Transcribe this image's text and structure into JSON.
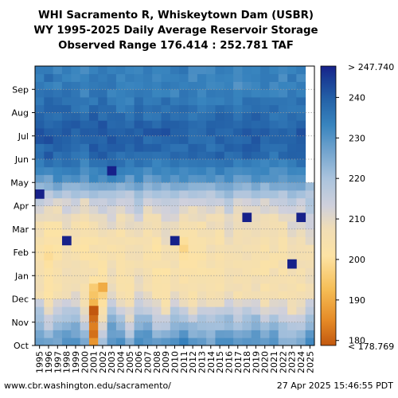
{
  "chart_data": {
    "type": "heatmap",
    "title_lines": [
      "WHI Sacramento R, Whiskeytown Dam (USBR)",
      "WY 1995-2025 Daily Average Reservoir Storage",
      "Observed Range 176.414 : 252.781 TAF"
    ],
    "x": [
      "1995",
      "1996",
      "1997",
      "1998",
      "1999",
      "2000",
      "2001",
      "2002",
      "2003",
      "2004",
      "2005",
      "2006",
      "2007",
      "2008",
      "2009",
      "2010",
      "2011",
      "2012",
      "2013",
      "2014",
      "2015",
      "2016",
      "2017",
      "2018",
      "2019",
      "2020",
      "2021",
      "2022",
      "2023",
      "2024",
      "2025"
    ],
    "y_months": [
      "Oct",
      "Nov",
      "Dec",
      "Jan",
      "Feb",
      "Mar",
      "Apr",
      "May",
      "Jun",
      "Jul",
      "Aug",
      "Sep"
    ],
    "y_ticks": [
      "Oct",
      "Nov",
      "Dec",
      "Jan",
      "Feb",
      "Mar",
      "Apr",
      "May",
      "Jun",
      "Jul",
      "Aug",
      "Sep"
    ],
    "colorbar": {
      "min": 178.769,
      "max": 247.74,
      "top_label": "> 247.740",
      "bottom_label": "< 178.769",
      "ticks": [
        180,
        190,
        200,
        210,
        220,
        230,
        240
      ],
      "colors": [
        "#c2580f",
        "#e58a26",
        "#f5bd55",
        "#fde3a4",
        "#f0ddb6",
        "#cfd0dc",
        "#a9c3dd",
        "#6fa2cd",
        "#3884be",
        "#2462a8",
        "#1a3f96",
        "#17218a"
      ]
    },
    "monthly_storage": {
      "1995": [
        230,
        222,
        208,
        206,
        204,
        207,
        214,
        230,
        238,
        240,
        236,
        234
      ],
      "1996": [
        225,
        213,
        203,
        202,
        199,
        204,
        212,
        228,
        239,
        241,
        238,
        236
      ],
      "1997": [
        228,
        218,
        206,
        205,
        201,
        204,
        213,
        231,
        238,
        240,
        237,
        234
      ],
      "1998": [
        230,
        220,
        208,
        206,
        209,
        208,
        214,
        230,
        239,
        241,
        238,
        235
      ],
      "1999": [
        231,
        222,
        209,
        206,
        204,
        206,
        213,
        230,
        238,
        240,
        237,
        234
      ],
      "2000": [
        226,
        210,
        205,
        204,
        202,
        204,
        211,
        229,
        237,
        240,
        236,
        232
      ],
      "2001": [
        186,
        180,
        194,
        205,
        203,
        205,
        216,
        232,
        239,
        241,
        238,
        235
      ],
      "2002": [
        222,
        207,
        197,
        203,
        205,
        207,
        216,
        233,
        239,
        241,
        238,
        235
      ],
      "2003": [
        230,
        224,
        210,
        207,
        205,
        210,
        216,
        232,
        238,
        240,
        237,
        234
      ],
      "2004": [
        231,
        220,
        205,
        205,
        204,
        206,
        214,
        230,
        238,
        240,
        236,
        233
      ],
      "2005": [
        222,
        212,
        204,
        206,
        206,
        208,
        213,
        229,
        237,
        239,
        236,
        233
      ],
      "2006": [
        230,
        222,
        210,
        207,
        206,
        209,
        218,
        231,
        238,
        240,
        237,
        234
      ],
      "2007": [
        231,
        222,
        208,
        205,
        204,
        206,
        212,
        229,
        237,
        240,
        236,
        233
      ],
      "2008": [
        226,
        215,
        205,
        203,
        203,
        206,
        213,
        229,
        238,
        240,
        236,
        233
      ],
      "2009": [
        228,
        213,
        202,
        203,
        206,
        210,
        216,
        230,
        238,
        240,
        237,
        234
      ],
      "2010": [
        231,
        222,
        209,
        206,
        205,
        208,
        214,
        229,
        238,
        240,
        236,
        233
      ],
      "2011": [
        232,
        220,
        204,
        203,
        199,
        205,
        214,
        231,
        238,
        240,
        237,
        234
      ],
      "2012": [
        230,
        216,
        203,
        203,
        203,
        206,
        212,
        228,
        237,
        239,
        236,
        233
      ],
      "2013": [
        228,
        218,
        206,
        204,
        204,
        206,
        213,
        229,
        237,
        239,
        236,
        233
      ],
      "2014": [
        226,
        217,
        205,
        205,
        206,
        207,
        213,
        229,
        237,
        239,
        236,
        232
      ],
      "2015": [
        230,
        219,
        206,
        205,
        204,
        206,
        214,
        230,
        238,
        240,
        237,
        234
      ],
      "2016": [
        231,
        221,
        209,
        206,
        207,
        210,
        216,
        231,
        238,
        240,
        236,
        233
      ],
      "2017": [
        228,
        218,
        206,
        205,
        205,
        207,
        213,
        229,
        237,
        239,
        236,
        232
      ],
      "2018": [
        230,
        220,
        208,
        206,
        206,
        208,
        214,
        230,
        238,
        240,
        237,
        234
      ],
      "2019": [
        231,
        221,
        207,
        205,
        204,
        207,
        214,
        231,
        238,
        240,
        237,
        234
      ],
      "2020": [
        229,
        216,
        204,
        204,
        203,
        206,
        213,
        229,
        237,
        240,
        236,
        233
      ],
      "2021": [
        230,
        219,
        206,
        205,
        205,
        207,
        213,
        229,
        237,
        239,
        236,
        233
      ],
      "2022": [
        226,
        216,
        206,
        205,
        204,
        207,
        214,
        230,
        237,
        239,
        236,
        233
      ],
      "2023": [
        225,
        212,
        205,
        206,
        207,
        210,
        216,
        231,
        238,
        240,
        237,
        234
      ],
      "2024": [
        226,
        216,
        205,
        205,
        206,
        209,
        215,
        231,
        238,
        240,
        237,
        234
      ],
      "2025": [
        230,
        222,
        210,
        207,
        207,
        213,
        220
      ]
    },
    "annotations": [
      {
        "year": "2001",
        "month": "Nov",
        "value": 178.8
      },
      {
        "year": "2002",
        "month": "Dec",
        "value": 190.0
      },
      {
        "year": "2003",
        "month": "May",
        "value": 247.7
      },
      {
        "year": "1995",
        "month": "Apr",
        "value": 247.7
      },
      {
        "year": "1998",
        "month": "Feb",
        "value": 247.7
      },
      {
        "year": "2010",
        "month": "Feb",
        "value": 247.7
      },
      {
        "year": "2018",
        "month": "Mar",
        "value": 247.7
      },
      {
        "year": "2023",
        "month": "Jan",
        "value": 247.7
      },
      {
        "year": "2024",
        "month": "Mar",
        "value": 247.7
      }
    ]
  },
  "footer": {
    "left": "www.cbr.washington.edu/sacramento/",
    "right": "27 Apr 2025 15:46:55 PDT"
  }
}
